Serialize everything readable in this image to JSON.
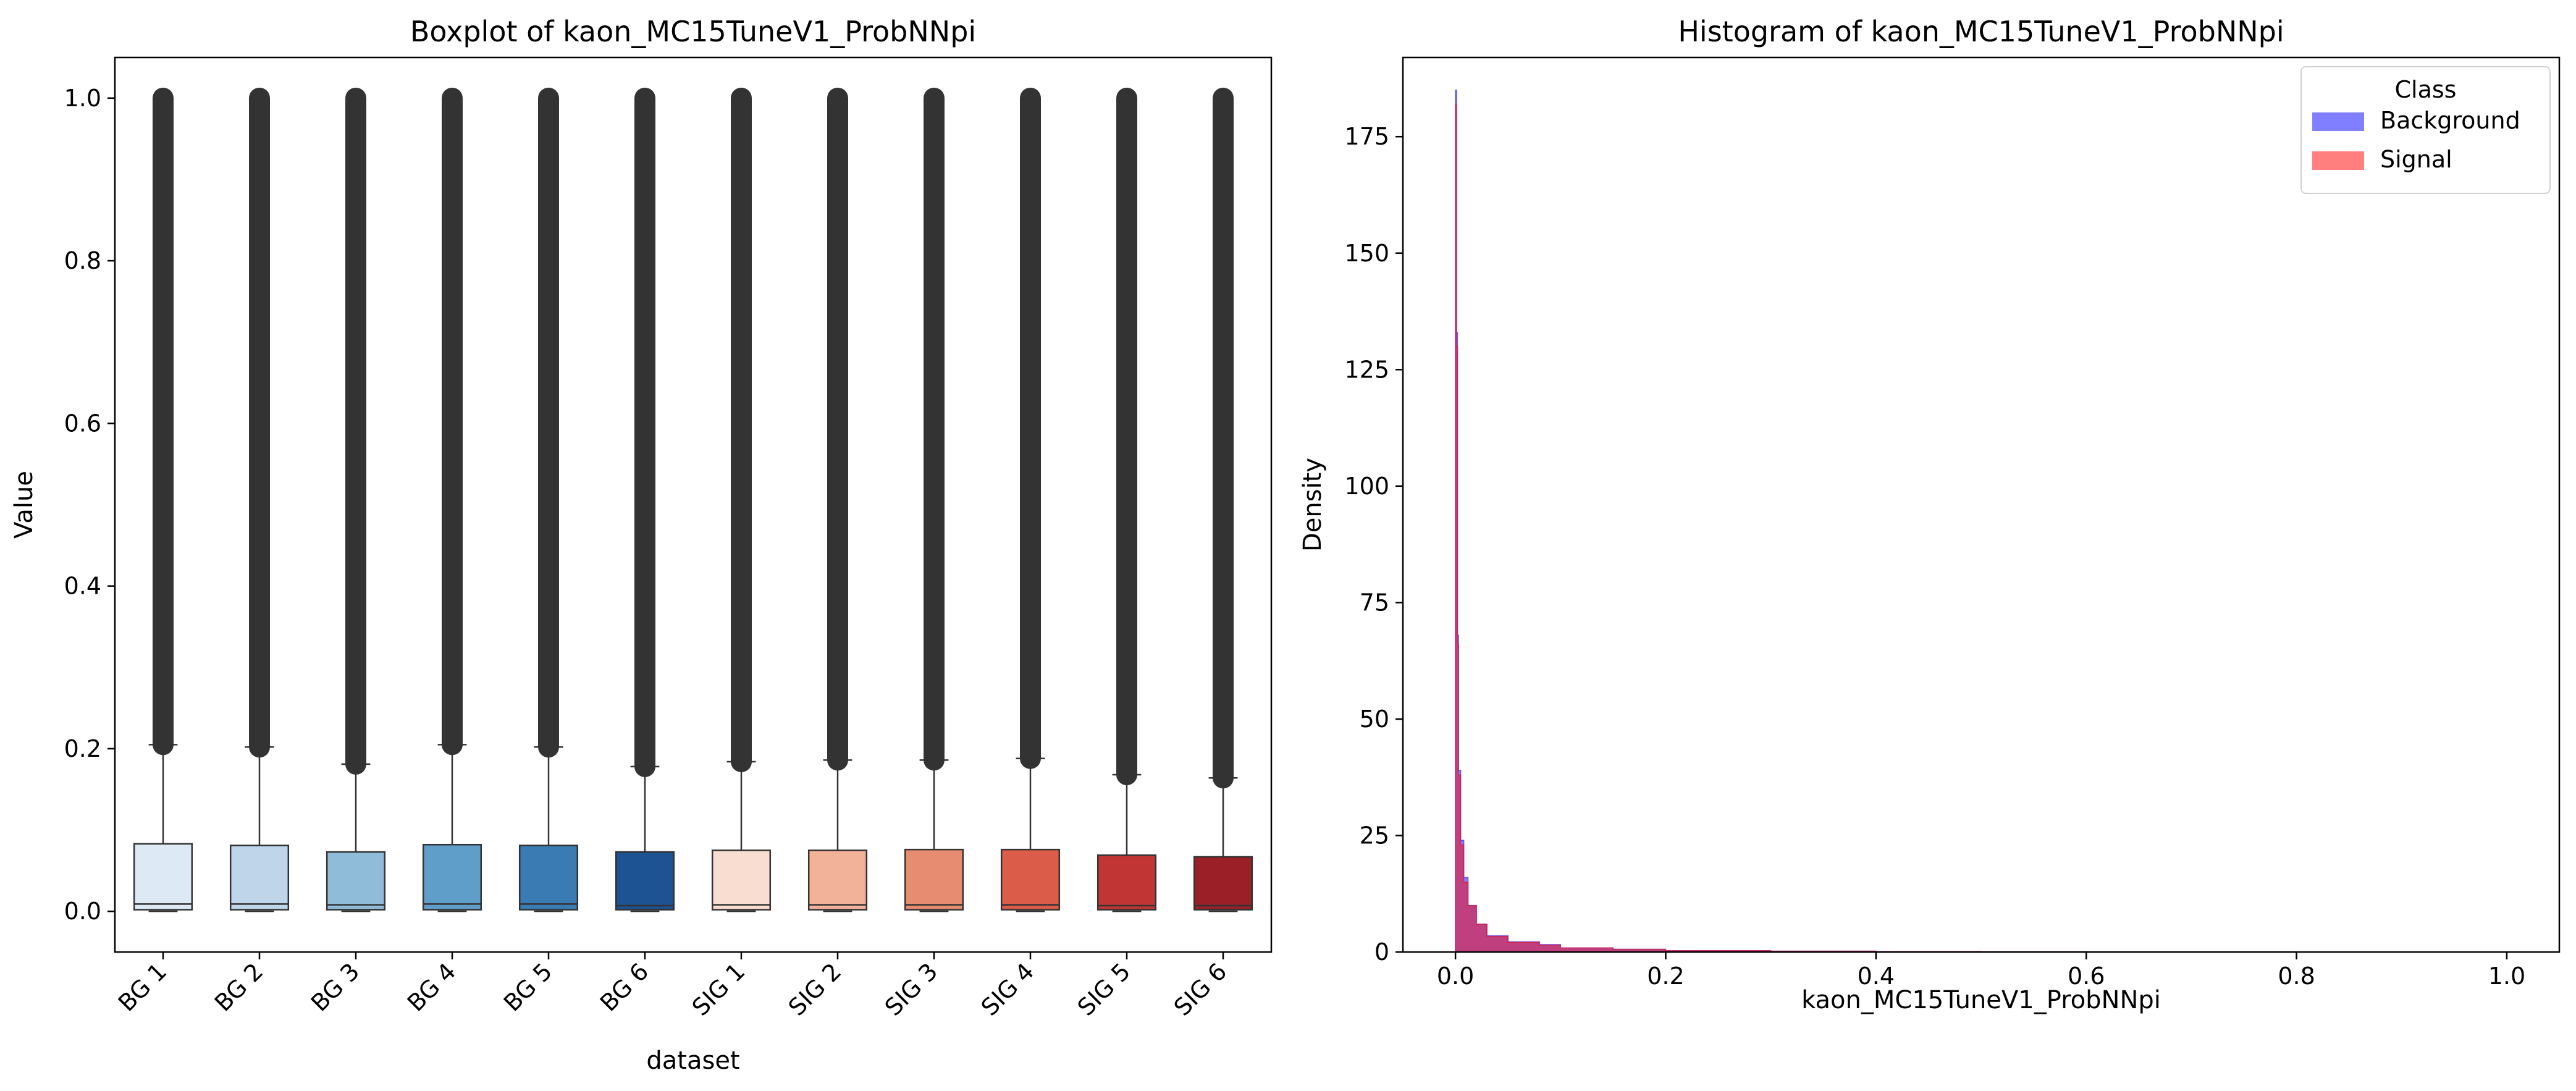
{
  "chart_data": [
    {
      "type": "box",
      "title": "Boxplot of kaon_MC15TuneV1_ProbNNpi",
      "xlabel": "dataset",
      "ylabel": "Value",
      "ylim": [
        -0.05,
        1.05
      ],
      "yticks": [
        "0.0",
        "0.2",
        "0.4",
        "0.6",
        "0.8",
        "1.0"
      ],
      "ytick_values": [
        0.0,
        0.2,
        0.4,
        0.6,
        0.8,
        1.0
      ],
      "categories": [
        "BG 1",
        "BG 2",
        "BG 3",
        "BG 4",
        "BG 5",
        "BG 6",
        "SIG 1",
        "SIG 2",
        "SIG 3",
        "SIG 4",
        "SIG 5",
        "SIG 6"
      ],
      "boxes": [
        {
          "min": 0.0,
          "q1": 0.002,
          "median": 0.009,
          "q3": 0.083,
          "whisker_high": 0.205,
          "flier_max": 1.0,
          "color": "#dde9f5"
        },
        {
          "min": 0.0,
          "q1": 0.002,
          "median": 0.009,
          "q3": 0.081,
          "whisker_high": 0.202,
          "flier_max": 1.0,
          "color": "#bed5ea"
        },
        {
          "min": 0.0,
          "q1": 0.002,
          "median": 0.008,
          "q3": 0.073,
          "whisker_high": 0.181,
          "flier_max": 1.0,
          "color": "#8fbcd9"
        },
        {
          "min": 0.0,
          "q1": 0.002,
          "median": 0.009,
          "q3": 0.082,
          "whisker_high": 0.205,
          "flier_max": 1.0,
          "color": "#5f9ec8"
        },
        {
          "min": 0.0,
          "q1": 0.002,
          "median": 0.009,
          "q3": 0.081,
          "whisker_high": 0.202,
          "flier_max": 1.0,
          "color": "#3a7bb4"
        },
        {
          "min": 0.0,
          "q1": 0.002,
          "median": 0.007,
          "q3": 0.073,
          "whisker_high": 0.178,
          "flier_max": 1.0,
          "color": "#1d5293"
        },
        {
          "min": 0.0,
          "q1": 0.002,
          "median": 0.008,
          "q3": 0.075,
          "whisker_high": 0.184,
          "flier_max": 1.0,
          "color": "#f8ddd0"
        },
        {
          "min": 0.0,
          "q1": 0.002,
          "median": 0.008,
          "q3": 0.075,
          "whisker_high": 0.186,
          "flier_max": 1.0,
          "color": "#f2b29a"
        },
        {
          "min": 0.0,
          "q1": 0.002,
          "median": 0.008,
          "q3": 0.076,
          "whisker_high": 0.186,
          "flier_max": 1.0,
          "color": "#e88c71"
        },
        {
          "min": 0.0,
          "q1": 0.002,
          "median": 0.008,
          "q3": 0.076,
          "whisker_high": 0.188,
          "flier_max": 1.0,
          "color": "#dc5c4a"
        },
        {
          "min": 0.0,
          "q1": 0.002,
          "median": 0.007,
          "q3": 0.069,
          "whisker_high": 0.168,
          "flier_max": 1.0,
          "color": "#c23535"
        },
        {
          "min": 0.0,
          "q1": 0.002,
          "median": 0.007,
          "q3": 0.067,
          "whisker_high": 0.164,
          "flier_max": 1.0,
          "color": "#9a1f27"
        }
      ]
    },
    {
      "type": "histogram",
      "title": "Histogram of kaon_MC15TuneV1_ProbNNpi",
      "xlabel": "kaon_MC15TuneV1_ProbNNpi",
      "ylabel": "Density",
      "xlim": [
        -0.05,
        1.05
      ],
      "ylim": [
        0,
        192
      ],
      "xticks": [
        "0.0",
        "0.2",
        "0.4",
        "0.6",
        "0.8",
        "1.0"
      ],
      "xtick_values": [
        0.0,
        0.2,
        0.4,
        0.6,
        0.8,
        1.0
      ],
      "yticks": [
        "0",
        "25",
        "50",
        "75",
        "100",
        "125",
        "150",
        "175"
      ],
      "ytick_values": [
        0,
        25,
        50,
        75,
        100,
        125,
        150,
        175
      ],
      "legend": {
        "title": "Class",
        "position": "top-right"
      },
      "series": [
        {
          "name": "Background",
          "color": "#0000ff",
          "x": [
            0.001,
            0.002,
            0.003,
            0.005,
            0.008,
            0.012,
            0.02,
            0.03,
            0.05,
            0.08,
            0.1,
            0.15,
            0.2,
            0.3,
            0.4,
            0.5,
            0.6,
            0.8,
            1.0
          ],
          "density": [
            185,
            133,
            68,
            39,
            24,
            16,
            10,
            6,
            3.5,
            2.2,
            1.6,
            0.9,
            0.6,
            0.3,
            0.2,
            0.12,
            0.08,
            0.05,
            0.03
          ]
        },
        {
          "name": "Signal",
          "color": "#ff0000",
          "x": [
            0.001,
            0.002,
            0.003,
            0.005,
            0.008,
            0.012,
            0.02,
            0.03,
            0.05,
            0.08,
            0.1,
            0.15,
            0.2,
            0.3,
            0.4,
            0.5,
            0.6,
            0.8,
            1.0
          ],
          "density": [
            182,
            130,
            66,
            38,
            23,
            15,
            10,
            6,
            3.4,
            2.1,
            1.5,
            0.9,
            0.6,
            0.3,
            0.2,
            0.12,
            0.08,
            0.05,
            0.03
          ]
        }
      ]
    }
  ]
}
